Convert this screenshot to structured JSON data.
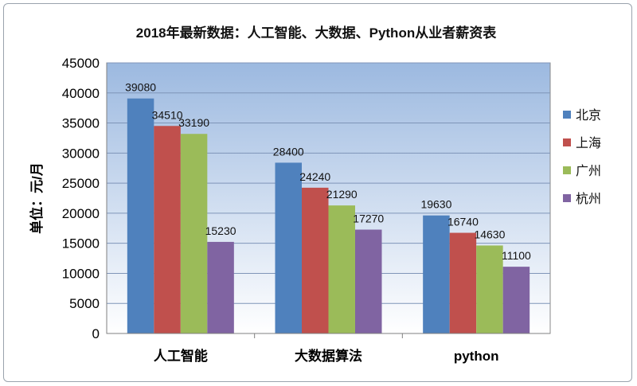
{
  "chart_data": {
    "type": "bar",
    "title": "2018年最新数据：人工智能、大数据、Python从业者薪资表",
    "xlabel": "",
    "ylabel": "单位：元/月",
    "ylim": [
      0,
      45000
    ],
    "yticks": [
      0,
      5000,
      10000,
      15000,
      20000,
      25000,
      30000,
      35000,
      40000,
      45000
    ],
    "categories": [
      "人工智能",
      "大数据算法",
      "python"
    ],
    "series": [
      {
        "name": "北京",
        "color": "#4f81bd",
        "values": [
          39080,
          28400,
          19630
        ]
      },
      {
        "name": "上海",
        "color": "#c0504d",
        "values": [
          34510,
          24240,
          16740
        ]
      },
      {
        "name": "广州",
        "color": "#9bbb59",
        "values": [
          33190,
          21290,
          14630
        ]
      },
      {
        "name": "杭州",
        "color": "#8064a2",
        "values": [
          15230,
          17270,
          11100
        ]
      }
    ],
    "legend_position": "right",
    "grid": true,
    "plot_background": "gradient-blue"
  }
}
